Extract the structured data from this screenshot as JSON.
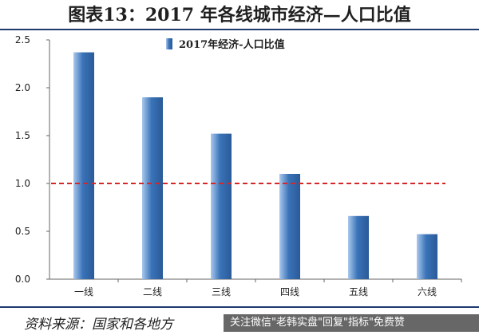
{
  "header": {
    "title": "图表13：2017 年各线城市经济—人口比值"
  },
  "footer": {
    "source": "资料来源：国家和各地方",
    "watermark": "关注微信\"老韩实盘\"回复\"指标\"免费赞"
  },
  "colors": {
    "bar": "#3a73b8",
    "bar_light": "#a9c8ec",
    "reference_line": "#d62728",
    "axis": "#666666"
  },
  "chart_data": {
    "type": "bar",
    "title": "",
    "xlabel": "",
    "ylabel": "",
    "categories": [
      "一线",
      "二线",
      "三线",
      "四线",
      "五线",
      "六线"
    ],
    "series": [
      {
        "name": "2017年经济-人口比值",
        "values": [
          2.37,
          1.9,
          1.52,
          1.1,
          0.66,
          0.47
        ]
      }
    ],
    "ylim": [
      0,
      2.5
    ],
    "yticks": [
      "0.0",
      "0.5",
      "1.0",
      "1.5",
      "2.0",
      "2.5"
    ],
    "reference_line": {
      "y": 1.0,
      "style": "dashed"
    },
    "legend": "top-center",
    "grid": false
  }
}
